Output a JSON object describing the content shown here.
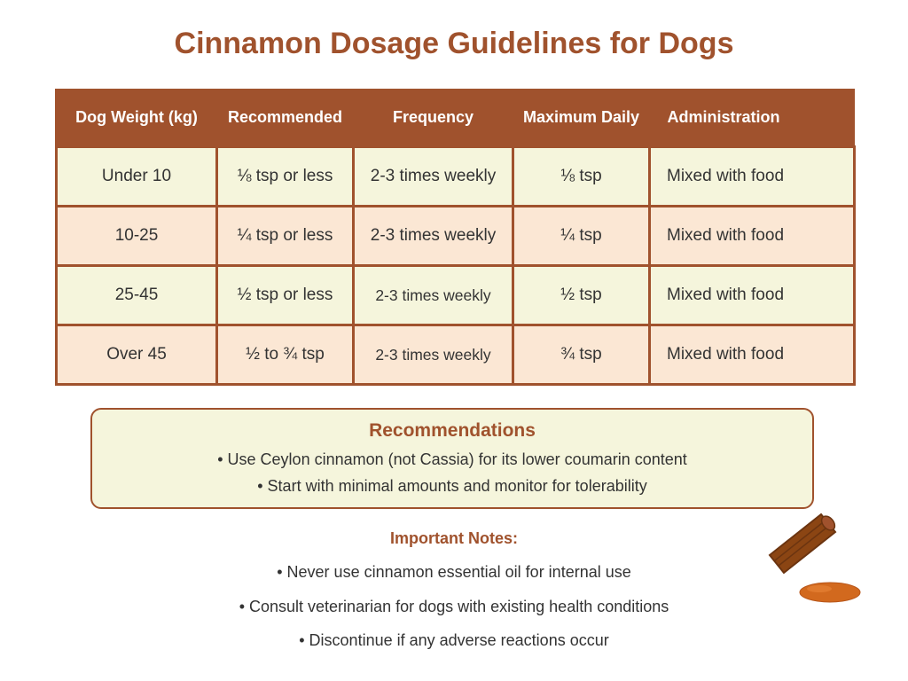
{
  "title": "Cinnamon Dosage Guidelines for Dogs",
  "table": {
    "headers": [
      "Dog Weight (kg)",
      "Recommended",
      "Frequency",
      "Maximum Daily",
      "Administration"
    ],
    "rows": [
      [
        "Under 10",
        "⅛ tsp or less",
        "2-3 times weekly",
        "⅛ tsp",
        "Mixed with food"
      ],
      [
        "10-25",
        "¼ tsp or less",
        "2-3 times weekly",
        "¼ tsp",
        "Mixed with food"
      ],
      [
        "25-45",
        "½ tsp or less",
        "2-3 times weekly",
        "½ tsp",
        "Mixed with food"
      ],
      [
        "Over 45",
        "½ to ¾ tsp",
        "2-3 times weekly",
        "¾ tsp",
        "Mixed with food"
      ]
    ]
  },
  "recommendations": {
    "title": "Recommendations",
    "items": [
      "• Use Ceylon cinnamon (not Cassia) for its lower coumarin content",
      "• Start with minimal amounts and monitor for tolerability"
    ]
  },
  "notes": {
    "title": "Important Notes:",
    "items": [
      "• Never use cinnamon essential oil for internal use",
      "• Consult veterinarian for dogs with existing health conditions",
      "• Discontinue if any adverse reactions occur"
    ]
  },
  "colors": {
    "accent": "#a0522d",
    "row_odd": "#f5f5dc",
    "row_even": "#fbe7d4",
    "powder": "#d2691e"
  },
  "decoration": {
    "icons": [
      "cinnamon-stick-icon",
      "cinnamon-powder-icon"
    ]
  }
}
